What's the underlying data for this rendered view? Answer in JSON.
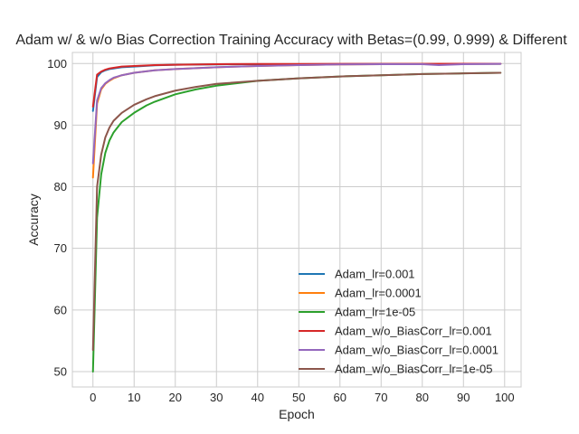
{
  "chart_data": {
    "type": "line",
    "title": "Adam w/ & w/o Bias Correction Training Accuracy with Betas=(0.99, 0.999) & Different",
    "xlabel": "Epoch",
    "ylabel": "Accuracy",
    "xlim": [
      -5,
      104
    ],
    "ylim": [
      47.5,
      101.8
    ],
    "xticks": [
      0,
      10,
      20,
      30,
      40,
      50,
      60,
      70,
      80,
      90,
      100
    ],
    "yticks": [
      50,
      60,
      70,
      80,
      90,
      100
    ],
    "grid": true,
    "legend_position": "lower right",
    "series": [
      {
        "name": "Adam_lr=0.001",
        "color": "#1f77b4",
        "x": [
          0,
          1,
          2,
          3,
          4,
          5,
          7,
          10,
          15,
          20,
          30,
          40,
          50,
          60,
          70,
          80,
          90,
          99
        ],
        "values": [
          92.3,
          97.8,
          98.6,
          98.9,
          99.1,
          99.2,
          99.4,
          99.5,
          99.7,
          99.8,
          99.85,
          99.9,
          99.9,
          99.9,
          99.92,
          99.93,
          99.94,
          99.95
        ]
      },
      {
        "name": "Adam_lr=0.0001",
        "color": "#ff7f0e",
        "x": [
          0,
          1,
          2,
          3,
          4,
          5,
          7,
          10,
          15,
          20,
          30,
          40,
          50,
          60,
          70,
          80,
          90,
          99
        ],
        "values": [
          81.5,
          93.5,
          95.8,
          96.7,
          97.2,
          97.6,
          98.1,
          98.5,
          98.9,
          99.1,
          99.4,
          99.6,
          99.75,
          99.85,
          99.9,
          99.92,
          99.94,
          99.95
        ]
      },
      {
        "name": "Adam_lr=1e-05",
        "color": "#2ca02c",
        "x": [
          0,
          1,
          2,
          3,
          4,
          5,
          7,
          10,
          13,
          15,
          20,
          25,
          30,
          40,
          50,
          60,
          70,
          80,
          90,
          99
        ],
        "values": [
          50.0,
          75.0,
          82.0,
          85.5,
          87.5,
          88.8,
          90.5,
          92.0,
          93.2,
          93.8,
          95.0,
          95.8,
          96.4,
          97.2,
          97.6,
          97.9,
          98.1,
          98.3,
          98.4,
          98.5
        ]
      },
      {
        "name": "Adam_w/o_BiasCorr_lr=0.001",
        "color": "#d62728",
        "x": [
          0,
          1,
          2,
          3,
          4,
          5,
          7,
          10,
          15,
          20,
          30,
          40,
          50,
          60,
          70,
          80,
          90,
          99
        ],
        "values": [
          93.0,
          98.2,
          98.7,
          99.0,
          99.2,
          99.3,
          99.5,
          99.6,
          99.75,
          99.8,
          99.9,
          99.92,
          99.93,
          99.94,
          99.95,
          99.95,
          99.96,
          99.96
        ]
      },
      {
        "name": "Adam_w/o_BiasCorr_lr=0.0001",
        "color": "#9467bd",
        "x": [
          0,
          1,
          2,
          3,
          4,
          5,
          7,
          10,
          15,
          20,
          30,
          40,
          50,
          60,
          70,
          80,
          84,
          90,
          99
        ],
        "values": [
          83.8,
          94.0,
          96.0,
          96.8,
          97.3,
          97.7,
          98.1,
          98.5,
          98.9,
          99.1,
          99.4,
          99.6,
          99.75,
          99.85,
          99.9,
          99.9,
          99.75,
          99.9,
          99.95
        ]
      },
      {
        "name": "Adam_w/o_BiasCorr_lr=1e-05",
        "color": "#8c564b",
        "x": [
          0,
          1,
          2,
          3,
          4,
          5,
          7,
          10,
          13,
          15,
          20,
          25,
          30,
          40,
          50,
          60,
          70,
          80,
          90,
          99
        ],
        "values": [
          53.5,
          80.0,
          85.2,
          88.0,
          89.6,
          90.7,
          92.0,
          93.3,
          94.2,
          94.7,
          95.6,
          96.2,
          96.7,
          97.2,
          97.6,
          97.9,
          98.1,
          98.3,
          98.4,
          98.5
        ]
      }
    ]
  }
}
